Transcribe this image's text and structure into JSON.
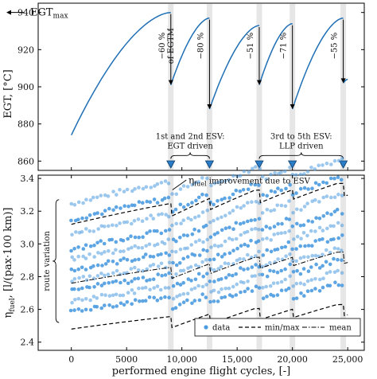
{
  "chart_data": [
    {
      "type": "line",
      "ylabel": "EGT, [°C]",
      "xlim": [
        -3000,
        26500
      ],
      "ylim": [
        855,
        945
      ],
      "yticks": [
        860,
        880,
        900,
        920,
        940
      ],
      "ytick_labels": [
        "860",
        "880",
        "900",
        "920",
        "940"
      ],
      "grid": false,
      "series_color": "#1f6fb5",
      "segments": [
        {
          "x": [
            0,
            9000
          ],
          "egt_start": 874,
          "egt_end": 940
        },
        {
          "x": [
            9000,
            12500
          ],
          "egt_start": 901,
          "egt_end": 937
        },
        {
          "x": [
            12500,
            17000
          ],
          "egt_start": 888,
          "egt_end": 933
        },
        {
          "x": [
            17000,
            20000
          ],
          "egt_start": 901,
          "egt_end": 934
        },
        {
          "x": [
            20000,
            24600
          ],
          "egt_start": 888,
          "egt_end": 937
        },
        {
          "x": [
            24600,
            25000
          ],
          "egt_start": 902,
          "egt_end": 904
        }
      ],
      "shop_visits_x": [
        9000,
        12500,
        17000,
        20000,
        24600
      ],
      "egt_max": {
        "label": "EGT",
        "subscript": "max",
        "value": 940
      },
      "reductions": [
        {
          "x": 9000,
          "lines": [
            "−60 %",
            "of EGTM"
          ]
        },
        {
          "x": 12500,
          "lines": [
            "−80 %"
          ]
        },
        {
          "x": 17000,
          "lines": [
            "−51 %"
          ]
        },
        {
          "x": 20000,
          "lines": [
            "−71 %"
          ]
        },
        {
          "x": 24600,
          "lines": [
            "−55 %"
          ]
        }
      ],
      "groups": [
        {
          "lines": [
            "1st and 2nd ESV:",
            "EGT driven"
          ],
          "x_range": [
            9000,
            12500
          ]
        },
        {
          "lines": [
            "3rd to 5th ESV:",
            "LLP driven"
          ],
          "x_range": [
            17000,
            24600
          ]
        }
      ]
    },
    {
      "type": "scatter",
      "xlabel": "performed engine flight cycles, [-]",
      "ylabel_prefix": "η",
      "ylabel_sub": "fuel",
      "ylabel_rest": ", [l/(pax·100 km)]",
      "xlim": [
        -3000,
        26500
      ],
      "ylim": [
        2.35,
        3.42
      ],
      "xticks": [
        0,
        5000,
        10000,
        15000,
        20000,
        25000
      ],
      "xtick_labels": [
        "0",
        "5000",
        "10,000",
        "15,000",
        "20,000",
        "25,000"
      ],
      "yticks": [
        2.4,
        2.6,
        2.8,
        3.0,
        3.2,
        3.4
      ],
      "ytick_labels": [
        "2.4",
        "2.6",
        "2.8",
        "3.0",
        "3.2",
        "3.4"
      ],
      "grid": false,
      "data_color": "#4d9be0",
      "route_baselines": [
        3.245,
        3.15,
        3.06,
        2.97,
        2.905,
        2.84,
        2.775,
        2.715,
        2.65,
        2.59
      ],
      "min_curve": {
        "start": 2.48,
        "end": 2.63,
        "drop_at_esv": 0.07
      },
      "max_curve": {
        "start": 3.12,
        "end": 3.37,
        "drop_at_esv": 0.08
      },
      "mean_curve": {
        "start": 2.76,
        "end": 2.95,
        "drop_at_esv": 0.07
      },
      "shop_visits_x": [
        9000,
        12500,
        17000,
        20000,
        24600
      ],
      "annotation": {
        "prefix": "η",
        "sub": "fuel",
        "text": " improvement due to ESV"
      },
      "route_variation_label": "route variation",
      "legend": {
        "position": "lower-right",
        "entries": [
          {
            "label": "data",
            "style": "dot"
          },
          {
            "label": "min/max",
            "style": "dashed"
          },
          {
            "label": "mean",
            "style": "dashdot"
          }
        ]
      }
    }
  ]
}
